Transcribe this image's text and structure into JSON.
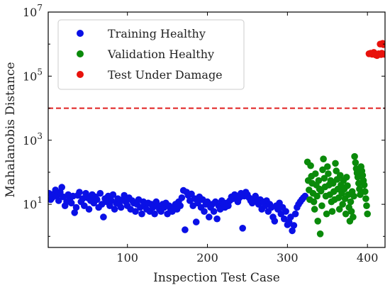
{
  "chart_data": {
    "type": "scatter",
    "xlabel": "Inspection Test Case",
    "ylabel": "Mahalanobis Distance",
    "xlim": [
      1,
      422
    ],
    "ylog": true,
    "ylim": [
      0.45,
      10000000
    ],
    "xticks": [
      100,
      200,
      300,
      400
    ],
    "xtick_labels": [
      "100",
      "200",
      "300",
      "400"
    ],
    "yticks": [
      10,
      1000,
      100000,
      10000000
    ],
    "ytick_labels": [
      "10^1",
      "10^3",
      "10^5",
      "10^7"
    ],
    "grid": false,
    "legend_position": "top-left",
    "threshold": {
      "y": 10000,
      "color": "#e02020",
      "style": "dashed"
    },
    "series": [
      {
        "name": "Training Healthy",
        "color": "#0a10e6",
        "points": [
          [
            2,
            22
          ],
          [
            4,
            14
          ],
          [
            6,
            16
          ],
          [
            8,
            21
          ],
          [
            10,
            28
          ],
          [
            12,
            18
          ],
          [
            14,
            13
          ],
          [
            16,
            24
          ],
          [
            18,
            34
          ],
          [
            20,
            17
          ],
          [
            22,
            9
          ],
          [
            24,
            12
          ],
          [
            26,
            20
          ],
          [
            28,
            15
          ],
          [
            30,
            11
          ],
          [
            32,
            18
          ],
          [
            34,
            5.5
          ],
          [
            36,
            8
          ],
          [
            38,
            19
          ],
          [
            40,
            24
          ],
          [
            42,
            12
          ],
          [
            44,
            15
          ],
          [
            46,
            9
          ],
          [
            48,
            22
          ],
          [
            50,
            16
          ],
          [
            52,
            7
          ],
          [
            54,
            13
          ],
          [
            56,
            20
          ],
          [
            58,
            11
          ],
          [
            60,
            17
          ],
          [
            62,
            14
          ],
          [
            64,
            8
          ],
          [
            66,
            22
          ],
          [
            68,
            10
          ],
          [
            70,
            4
          ],
          [
            72,
            15
          ],
          [
            74,
            12
          ],
          [
            76,
            18
          ],
          [
            78,
            9
          ],
          [
            80,
            13
          ],
          [
            82,
            20
          ],
          [
            84,
            7
          ],
          [
            86,
            11
          ],
          [
            88,
            15
          ],
          [
            90,
            10
          ],
          [
            92,
            8
          ],
          [
            94,
            14
          ],
          [
            96,
            19
          ],
          [
            98,
            12
          ],
          [
            100,
            9
          ],
          [
            102,
            16
          ],
          [
            104,
            7
          ],
          [
            106,
            13
          ],
          [
            108,
            11
          ],
          [
            110,
            6
          ],
          [
            112,
            10
          ],
          [
            114,
            14
          ],
          [
            116,
            8
          ],
          [
            118,
            5
          ],
          [
            120,
            12
          ],
          [
            122,
            9
          ],
          [
            124,
            7
          ],
          [
            126,
            11
          ],
          [
            128,
            6
          ],
          [
            130,
            10
          ],
          [
            132,
            8
          ],
          [
            134,
            5
          ],
          [
            136,
            12
          ],
          [
            138,
            9
          ],
          [
            140,
            7
          ],
          [
            142,
            6
          ],
          [
            144,
            10
          ],
          [
            146,
            8
          ],
          [
            148,
            11
          ],
          [
            150,
            5
          ],
          [
            152,
            9
          ],
          [
            154,
            7
          ],
          [
            156,
            6
          ],
          [
            158,
            8
          ],
          [
            160,
            10
          ],
          [
            162,
            7
          ],
          [
            164,
            12
          ],
          [
            166,
            9
          ],
          [
            168,
            16
          ],
          [
            170,
            27
          ],
          [
            172,
            1.6
          ],
          [
            174,
            24
          ],
          [
            176,
            19
          ],
          [
            178,
            13
          ],
          [
            180,
            21
          ],
          [
            182,
            9
          ],
          [
            184,
            15
          ],
          [
            186,
            2.8
          ],
          [
            188,
            11
          ],
          [
            190,
            17
          ],
          [
            192,
            8
          ],
          [
            194,
            14
          ],
          [
            196,
            6
          ],
          [
            198,
            10
          ],
          [
            200,
            12
          ],
          [
            202,
            4
          ],
          [
            204,
            8
          ],
          [
            206,
            10
          ],
          [
            208,
            6
          ],
          [
            210,
            12
          ],
          [
            212,
            3.5
          ],
          [
            214,
            9
          ],
          [
            216,
            7
          ],
          [
            218,
            13
          ],
          [
            220,
            10
          ],
          [
            222,
            8
          ],
          [
            224,
            11
          ],
          [
            226,
            9
          ],
          [
            228,
            13
          ],
          [
            230,
            17
          ],
          [
            232,
            15
          ],
          [
            234,
            20
          ],
          [
            236,
            18
          ],
          [
            238,
            12
          ],
          [
            240,
            16
          ],
          [
            242,
            22
          ],
          [
            244,
            1.8
          ],
          [
            246,
            18
          ],
          [
            248,
            24
          ],
          [
            250,
            20
          ],
          [
            252,
            16
          ],
          [
            254,
            13
          ],
          [
            256,
            11
          ],
          [
            258,
            15
          ],
          [
            260,
            18
          ],
          [
            262,
            12
          ],
          [
            264,
            10
          ],
          [
            266,
            14
          ],
          [
            268,
            7
          ],
          [
            270,
            12
          ],
          [
            272,
            9
          ],
          [
            274,
            13
          ],
          [
            276,
            6
          ],
          [
            278,
            10
          ],
          [
            280,
            8
          ],
          [
            282,
            4
          ],
          [
            284,
            3
          ],
          [
            286,
            9
          ],
          [
            288,
            7
          ],
          [
            290,
            11
          ],
          [
            292,
            5
          ],
          [
            294,
            8
          ],
          [
            296,
            3.5
          ],
          [
            298,
            6
          ],
          [
            300,
            2.3
          ],
          [
            302,
            2.8
          ],
          [
            304,
            4
          ],
          [
            306,
            1.5
          ],
          [
            308,
            2.2
          ],
          [
            310,
            5
          ],
          [
            312,
            8
          ],
          [
            314,
            10
          ],
          [
            316,
            12
          ],
          [
            318,
            14
          ],
          [
            320,
            16
          ],
          [
            322,
            18
          ]
        ]
      },
      {
        "name": "Validation Healthy",
        "color": "#0a8a0a",
        "points": [
          [
            325,
            210
          ],
          [
            326,
            55
          ],
          [
            327,
            28
          ],
          [
            328,
            14
          ],
          [
            329,
            160
          ],
          [
            330,
            75
          ],
          [
            331,
            45
          ],
          [
            332,
            22
          ],
          [
            333,
            12
          ],
          [
            334,
            7
          ],
          [
            335,
            90
          ],
          [
            336,
            40
          ],
          [
            337,
            18
          ],
          [
            338,
            3
          ],
          [
            339,
            55
          ],
          [
            340,
            30
          ],
          [
            341,
            1.2
          ],
          [
            342,
            26
          ],
          [
            343,
            9
          ],
          [
            344,
            120
          ],
          [
            345,
            260
          ],
          [
            346,
            65
          ],
          [
            347,
            35
          ],
          [
            348,
            18
          ],
          [
            349,
            5
          ],
          [
            350,
            150
          ],
          [
            351,
            90
          ],
          [
            352,
            40
          ],
          [
            353,
            20
          ],
          [
            354,
            55
          ],
          [
            355,
            12
          ],
          [
            356,
            6
          ],
          [
            357,
            45
          ],
          [
            358,
            25
          ],
          [
            359,
            14
          ],
          [
            360,
            190
          ],
          [
            361,
            110
          ],
          [
            362,
            60
          ],
          [
            363,
            30
          ],
          [
            364,
            16
          ],
          [
            365,
            7
          ],
          [
            366,
            80
          ],
          [
            367,
            40
          ],
          [
            368,
            22
          ],
          [
            369,
            10
          ],
          [
            370,
            55
          ],
          [
            371,
            30
          ],
          [
            372,
            15
          ],
          [
            373,
            5
          ],
          [
            374,
            70
          ],
          [
            375,
            38
          ],
          [
            376,
            20
          ],
          [
            377,
            8
          ],
          [
            378,
            3
          ],
          [
            379,
            12
          ],
          [
            380,
            6
          ],
          [
            381,
            25
          ],
          [
            382,
            4
          ],
          [
            383,
            18
          ],
          [
            384,
            310
          ],
          [
            385,
            200
          ],
          [
            386,
            130
          ],
          [
            387,
            95
          ],
          [
            388,
            70
          ],
          [
            389,
            45
          ],
          [
            390,
            30
          ],
          [
            391,
            20
          ],
          [
            392,
            150
          ],
          [
            393,
            110
          ],
          [
            394,
            80
          ],
          [
            395,
            55
          ],
          [
            396,
            40
          ],
          [
            397,
            25
          ],
          [
            398,
            15
          ],
          [
            399,
            9
          ],
          [
            400,
            5
          ]
        ]
      },
      {
        "name": "Test Under Damage",
        "color": "#e8120c",
        "points": [
          [
            402,
            500000
          ],
          [
            404,
            520000
          ],
          [
            406,
            480000
          ],
          [
            408,
            550000
          ],
          [
            410,
            460000
          ],
          [
            412,
            440000
          ],
          [
            414,
            500000
          ],
          [
            416,
            1000000
          ],
          [
            417,
            470000
          ],
          [
            418,
            520000
          ],
          [
            419,
            1050000
          ],
          [
            420,
            960000
          ],
          [
            421,
            480000
          ]
        ]
      }
    ]
  }
}
